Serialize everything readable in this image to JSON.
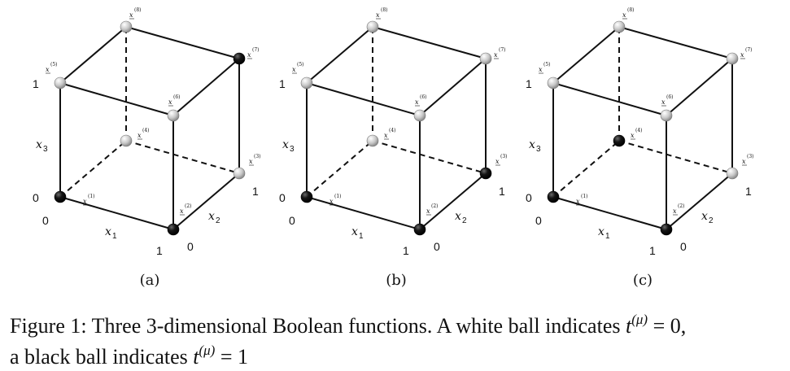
{
  "figure": {
    "panels": [
      {
        "label": "(a)",
        "states": [
          1,
          1,
          0,
          0,
          0,
          0,
          1,
          0
        ]
      },
      {
        "label": "(b)",
        "states": [
          1,
          1,
          1,
          0,
          0,
          0,
          0,
          0
        ]
      },
      {
        "label": "(c)",
        "states": [
          1,
          1,
          0,
          1,
          0,
          0,
          0,
          0
        ]
      }
    ],
    "vertex_labels": [
      "x(1)",
      "x(2)",
      "x(3)",
      "x(4)",
      "x(5)",
      "x(6)",
      "x(7)",
      "x(8)"
    ],
    "axis": {
      "x1": "x1",
      "x2": "x2",
      "x3": "x3",
      "zero": "0",
      "one": "1"
    },
    "ball_colors": {
      "white": "#c4c4c4",
      "black": "#0a0a0a"
    }
  },
  "caption": {
    "line1_text": "Figure 1: Three 3-dimensional Boolean functions. A white ball indicates ",
    "line1_math_t": "t",
    "line1_math_sup": "(μ)",
    "line1_math_rest": " = 0,",
    "line2_text": "a black ball indicates ",
    "line2_math_t": "t",
    "line2_math_sup": "(μ)",
    "line2_math_rest": " = 1"
  }
}
